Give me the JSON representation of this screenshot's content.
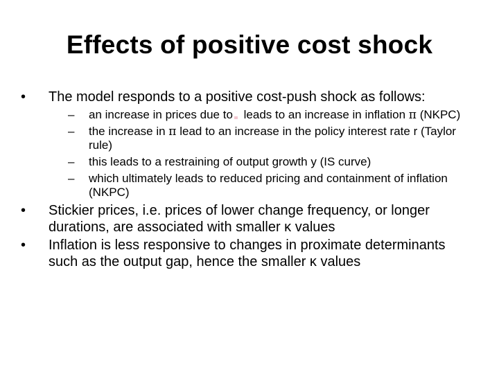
{
  "title": "Effects of positive cost shock",
  "bullet1": {
    "marker": "•",
    "text": "The model responds to a positive cost-push shock  as follows:",
    "sub": [
      {
        "marker": "–",
        "pre": "an increase in prices due to",
        "post": " leads to an increase in inflation ",
        "symbol": "π",
        "tail": " (NKPC)"
      },
      {
        "marker": "–",
        "pre": "the increase in ",
        "symbol": "π",
        "post": " lead to an increase in the policy interest rate r (Taylor rule)"
      },
      {
        "marker": "–",
        "text": "this leads to a restraining of output growth y (IS curve)"
      },
      {
        "marker": "–",
        "text": "which ultimately leads to reduced pricing and containment of inflation (NKPC)"
      }
    ]
  },
  "bullet2": {
    "marker": "•",
    "text": "Stickier prices, i.e. prices of lower change frequency, or longer durations, are associated with smaller κ values"
  },
  "bullet3": {
    "marker": "•",
    "text": "Inflation is less responsive to changes in proximate determinants such as the output gap, hence the smaller κ values"
  }
}
